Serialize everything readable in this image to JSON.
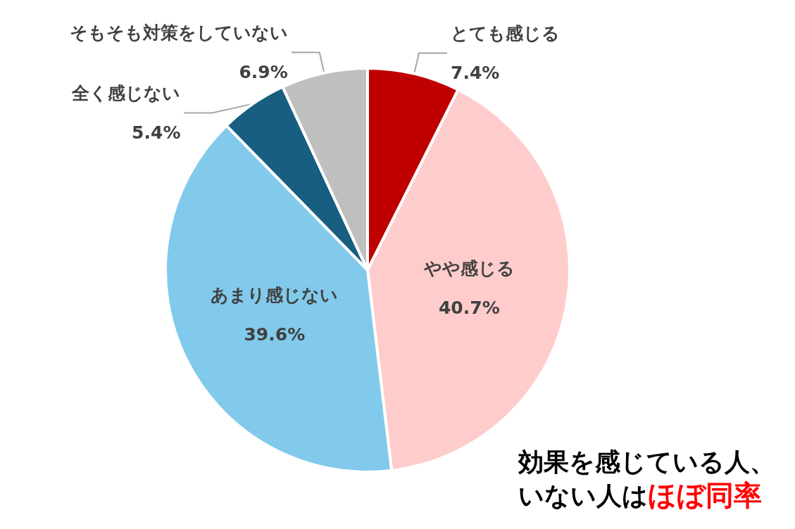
{
  "chart_data": {
    "type": "pie",
    "categories": [
      "とても感じる",
      "やや感じる",
      "あまり感じない",
      "全く感じない",
      "そもそも対策をしていない"
    ],
    "values": [
      7.4,
      40.7,
      39.6,
      5.4,
      6.9
    ],
    "value_labels": [
      "7.4%",
      "40.7%",
      "39.6%",
      "5.4%",
      "6.9%"
    ],
    "colors": [
      "#c00000",
      "#ffcccc",
      "#82caeb",
      "#175e80",
      "#bfbfbf"
    ],
    "legend": false,
    "annotations": [
      "効果を感じている人、",
      "いない人は",
      "ほぼ同率"
    ]
  }
}
